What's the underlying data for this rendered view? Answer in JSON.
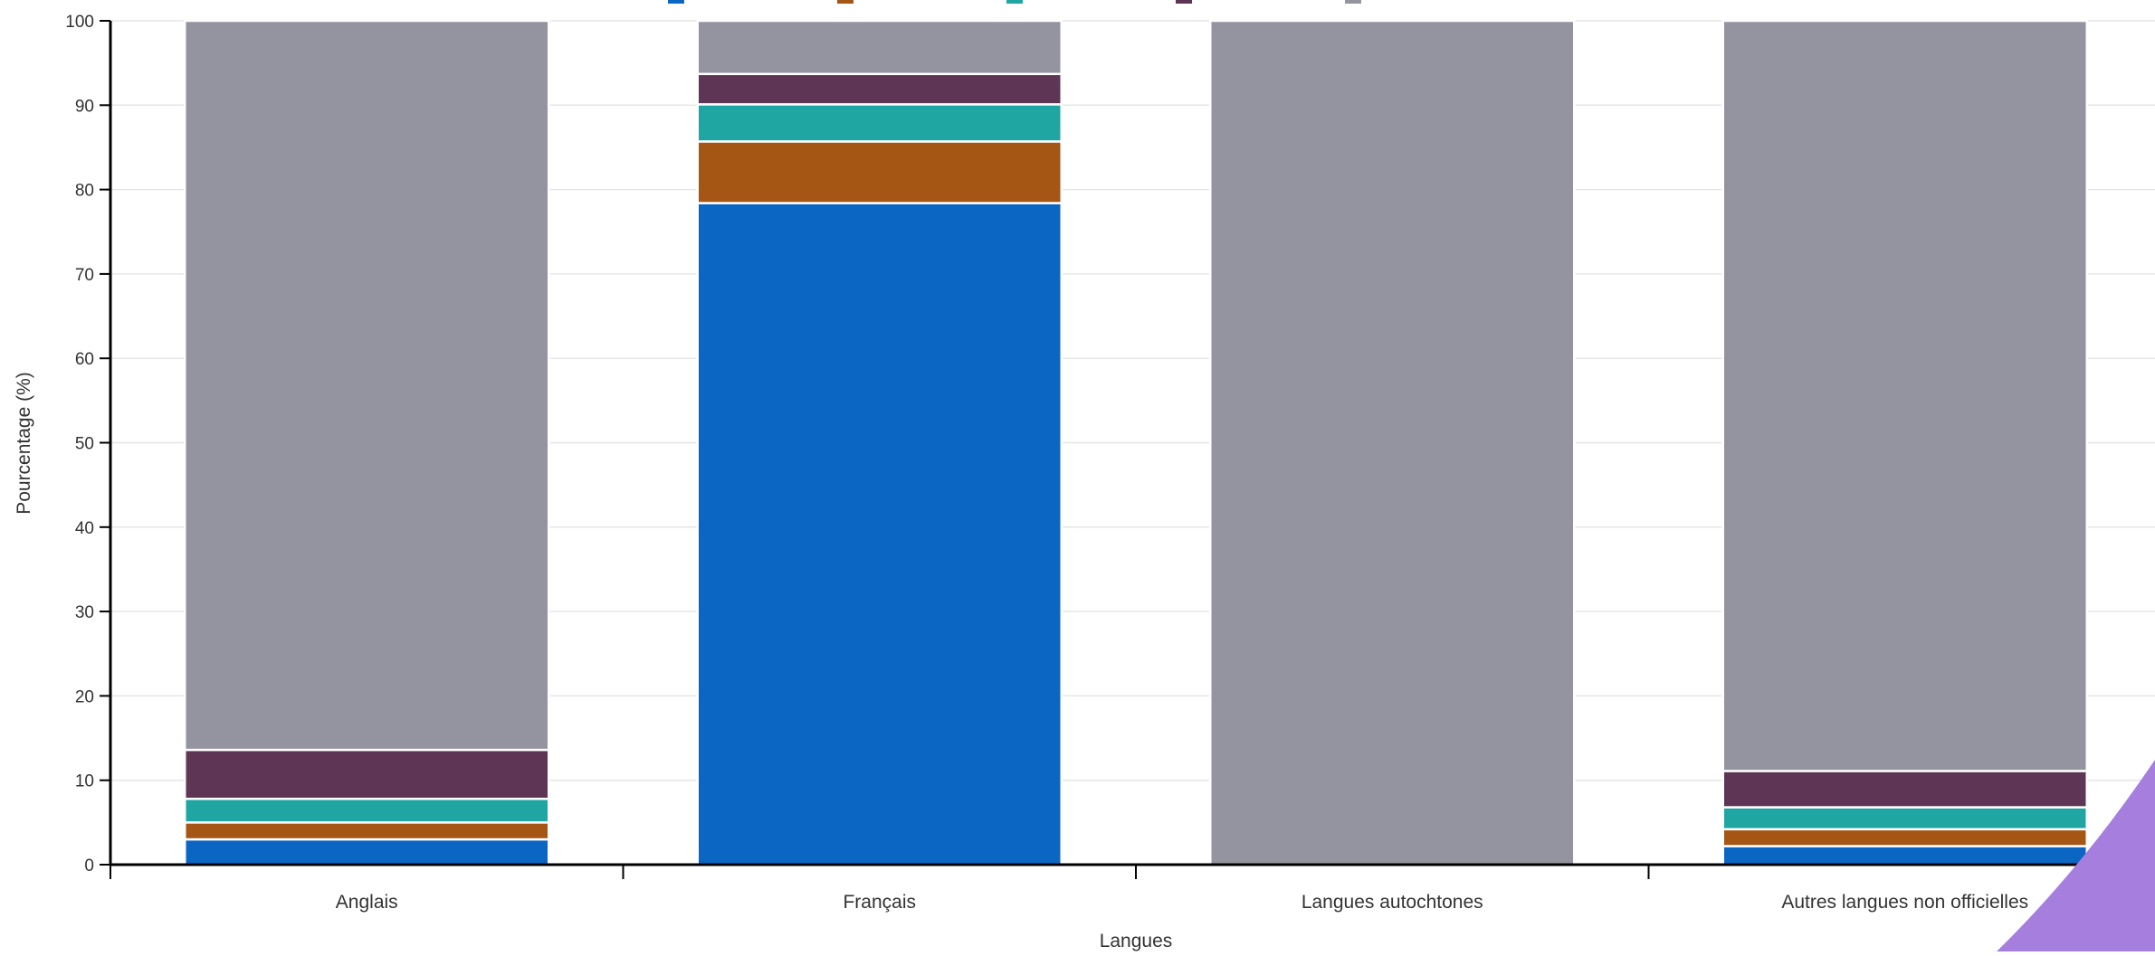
{
  "chart_data": {
    "type": "bar",
    "stacked": true,
    "title": "",
    "xlabel": "Langues",
    "ylabel": "Pourcentage (%)",
    "ylim": [
      0,
      100
    ],
    "y_ticks": [
      0,
      10,
      20,
      30,
      40,
      50,
      60,
      70,
      80,
      90,
      100
    ],
    "grid": true,
    "legend_position": "top-center",
    "categories": [
      "Anglais",
      "Français",
      "Langues autochtones",
      "Autres langues non officielles"
    ],
    "series": [
      {
        "color": "#0b66c3",
        "values": [
          3.0,
          78.4,
          0.0,
          2.2
        ]
      },
      {
        "color": "#a55614",
        "values": [
          2.0,
          7.3,
          0.0,
          2.0
        ]
      },
      {
        "color": "#1fa6a3",
        "values": [
          2.8,
          4.4,
          0.0,
          2.6
        ]
      },
      {
        "color": "#5e3554",
        "values": [
          5.8,
          3.6,
          0.0,
          4.3
        ]
      },
      {
        "color": "#93949f",
        "values": [
          86.4,
          6.3,
          100.0,
          88.9
        ]
      }
    ]
  },
  "decoration": {
    "corner_shape_color": "#a67fde"
  }
}
